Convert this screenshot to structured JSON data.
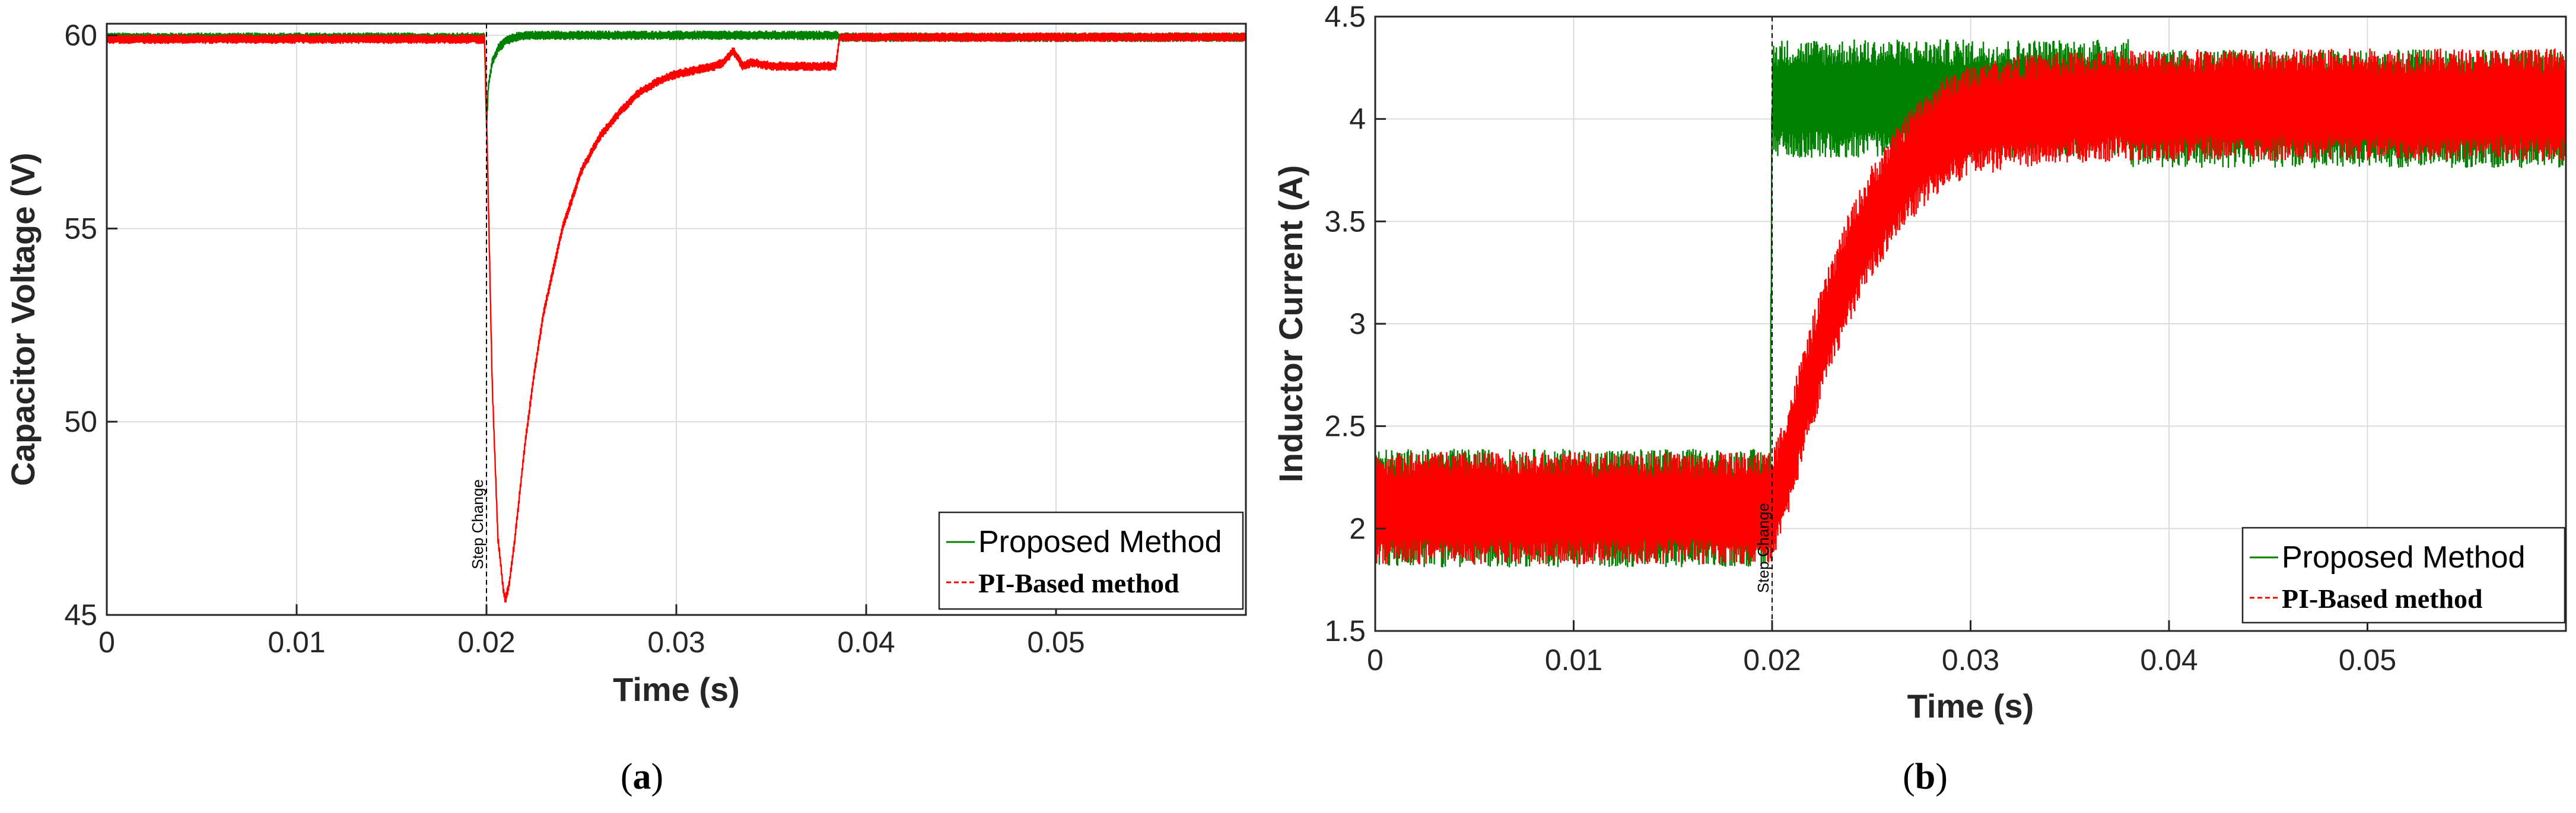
{
  "chart_data": [
    {
      "type": "line",
      "panel_label": "a",
      "xlabel": "Time (s)",
      "ylabel": "Capacitor Voltage (V)",
      "xlim": [
        0,
        0.06
      ],
      "ylim": [
        45,
        60.3
      ],
      "xticks": [
        0,
        0.01,
        0.02,
        0.03,
        0.04,
        0.05
      ],
      "xtick_labels": [
        "0",
        "0.01",
        "0.02",
        "0.03",
        "0.04",
        "0.05"
      ],
      "yticks": [
        45,
        50,
        55,
        60
      ],
      "ytick_labels": [
        "45",
        "50",
        "55",
        "60"
      ],
      "grid": true,
      "legend_position": "bottom-right",
      "annotation": {
        "text": "Step Change",
        "x": 0.02
      },
      "series": [
        {
          "name": "Proposed Method",
          "color": "#008000",
          "style": "solid",
          "ripple": 0.25,
          "x": [
            0,
            0.0199,
            0.02,
            0.0201,
            0.0203,
            0.0206,
            0.021,
            0.0215,
            0.022,
            0.025,
            0.03,
            0.0385,
            0.0386,
            0.045,
            0.06
          ],
          "y": [
            59.95,
            59.95,
            57.6,
            58.7,
            59.3,
            59.65,
            59.85,
            59.95,
            60.0,
            60.0,
            60.0,
            60.0,
            59.95,
            59.95,
            59.95
          ]
        },
        {
          "name": "PI-Based method",
          "color": "#ff0000",
          "style": "dashed",
          "ripple": 0.25,
          "x": [
            0,
            0.0199,
            0.02,
            0.0203,
            0.0206,
            0.0209,
            0.021,
            0.0212,
            0.0215,
            0.022,
            0.0225,
            0.023,
            0.024,
            0.025,
            0.026,
            0.027,
            0.028,
            0.029,
            0.03,
            0.031,
            0.032,
            0.0325,
            0.033,
            0.0335,
            0.034,
            0.035,
            0.036,
            0.037,
            0.0384,
            0.0386,
            0.045,
            0.06
          ],
          "y": [
            59.9,
            59.9,
            58.0,
            51.0,
            47.0,
            45.6,
            45.4,
            45.8,
            47.0,
            49.3,
            51.2,
            52.8,
            55.0,
            56.5,
            57.4,
            58.0,
            58.5,
            58.8,
            59.0,
            59.1,
            59.2,
            59.3,
            59.6,
            59.2,
            59.3,
            59.2,
            59.2,
            59.2,
            59.2,
            59.95,
            59.95,
            59.95
          ]
        }
      ]
    },
    {
      "type": "line",
      "panel_label": "b",
      "xlabel": "Time (s)",
      "ylabel": "Inductor Current (A)",
      "xlim": [
        0,
        0.06
      ],
      "ylim": [
        1.5,
        4.5
      ],
      "xticks": [
        0,
        0.01,
        0.02,
        0.03,
        0.04,
        0.05
      ],
      "xtick_labels": [
        "0",
        "0.01",
        "0.02",
        "0.03",
        "0.04",
        "0.05"
      ],
      "yticks": [
        1.5,
        2,
        2.5,
        3,
        3.5,
        4,
        4.5
      ],
      "ytick_labels": [
        "1.5",
        "2",
        "2.5",
        "3",
        "3.5",
        "4",
        "4.5"
      ],
      "grid": true,
      "legend_position": "bottom-right",
      "annotation": {
        "text": "Step Change",
        "x": 0.02
      },
      "series": [
        {
          "name": "Proposed Method",
          "color": "#008000",
          "style": "solid",
          "ripple": 0.58,
          "x": [
            0,
            0.0199,
            0.02,
            0.038,
            0.0381,
            0.06
          ],
          "y": [
            2.1,
            2.1,
            4.1,
            4.1,
            4.05,
            4.05
          ]
        },
        {
          "name": "PI-Based method",
          "color": "#ff0000",
          "style": "dashed",
          "ripple": 0.55,
          "x": [
            0,
            0.0199,
            0.02,
            0.021,
            0.022,
            0.023,
            0.024,
            0.025,
            0.026,
            0.027,
            0.028,
            0.029,
            0.03,
            0.032,
            0.034,
            0.036,
            0.038,
            0.06
          ],
          "y": [
            2.1,
            2.1,
            2.1,
            2.4,
            2.75,
            3.05,
            3.3,
            3.5,
            3.65,
            3.78,
            3.88,
            3.95,
            3.99,
            4.03,
            4.05,
            4.06,
            4.07,
            4.07
          ]
        }
      ]
    }
  ],
  "captions": {
    "a": "a",
    "b": "b"
  }
}
